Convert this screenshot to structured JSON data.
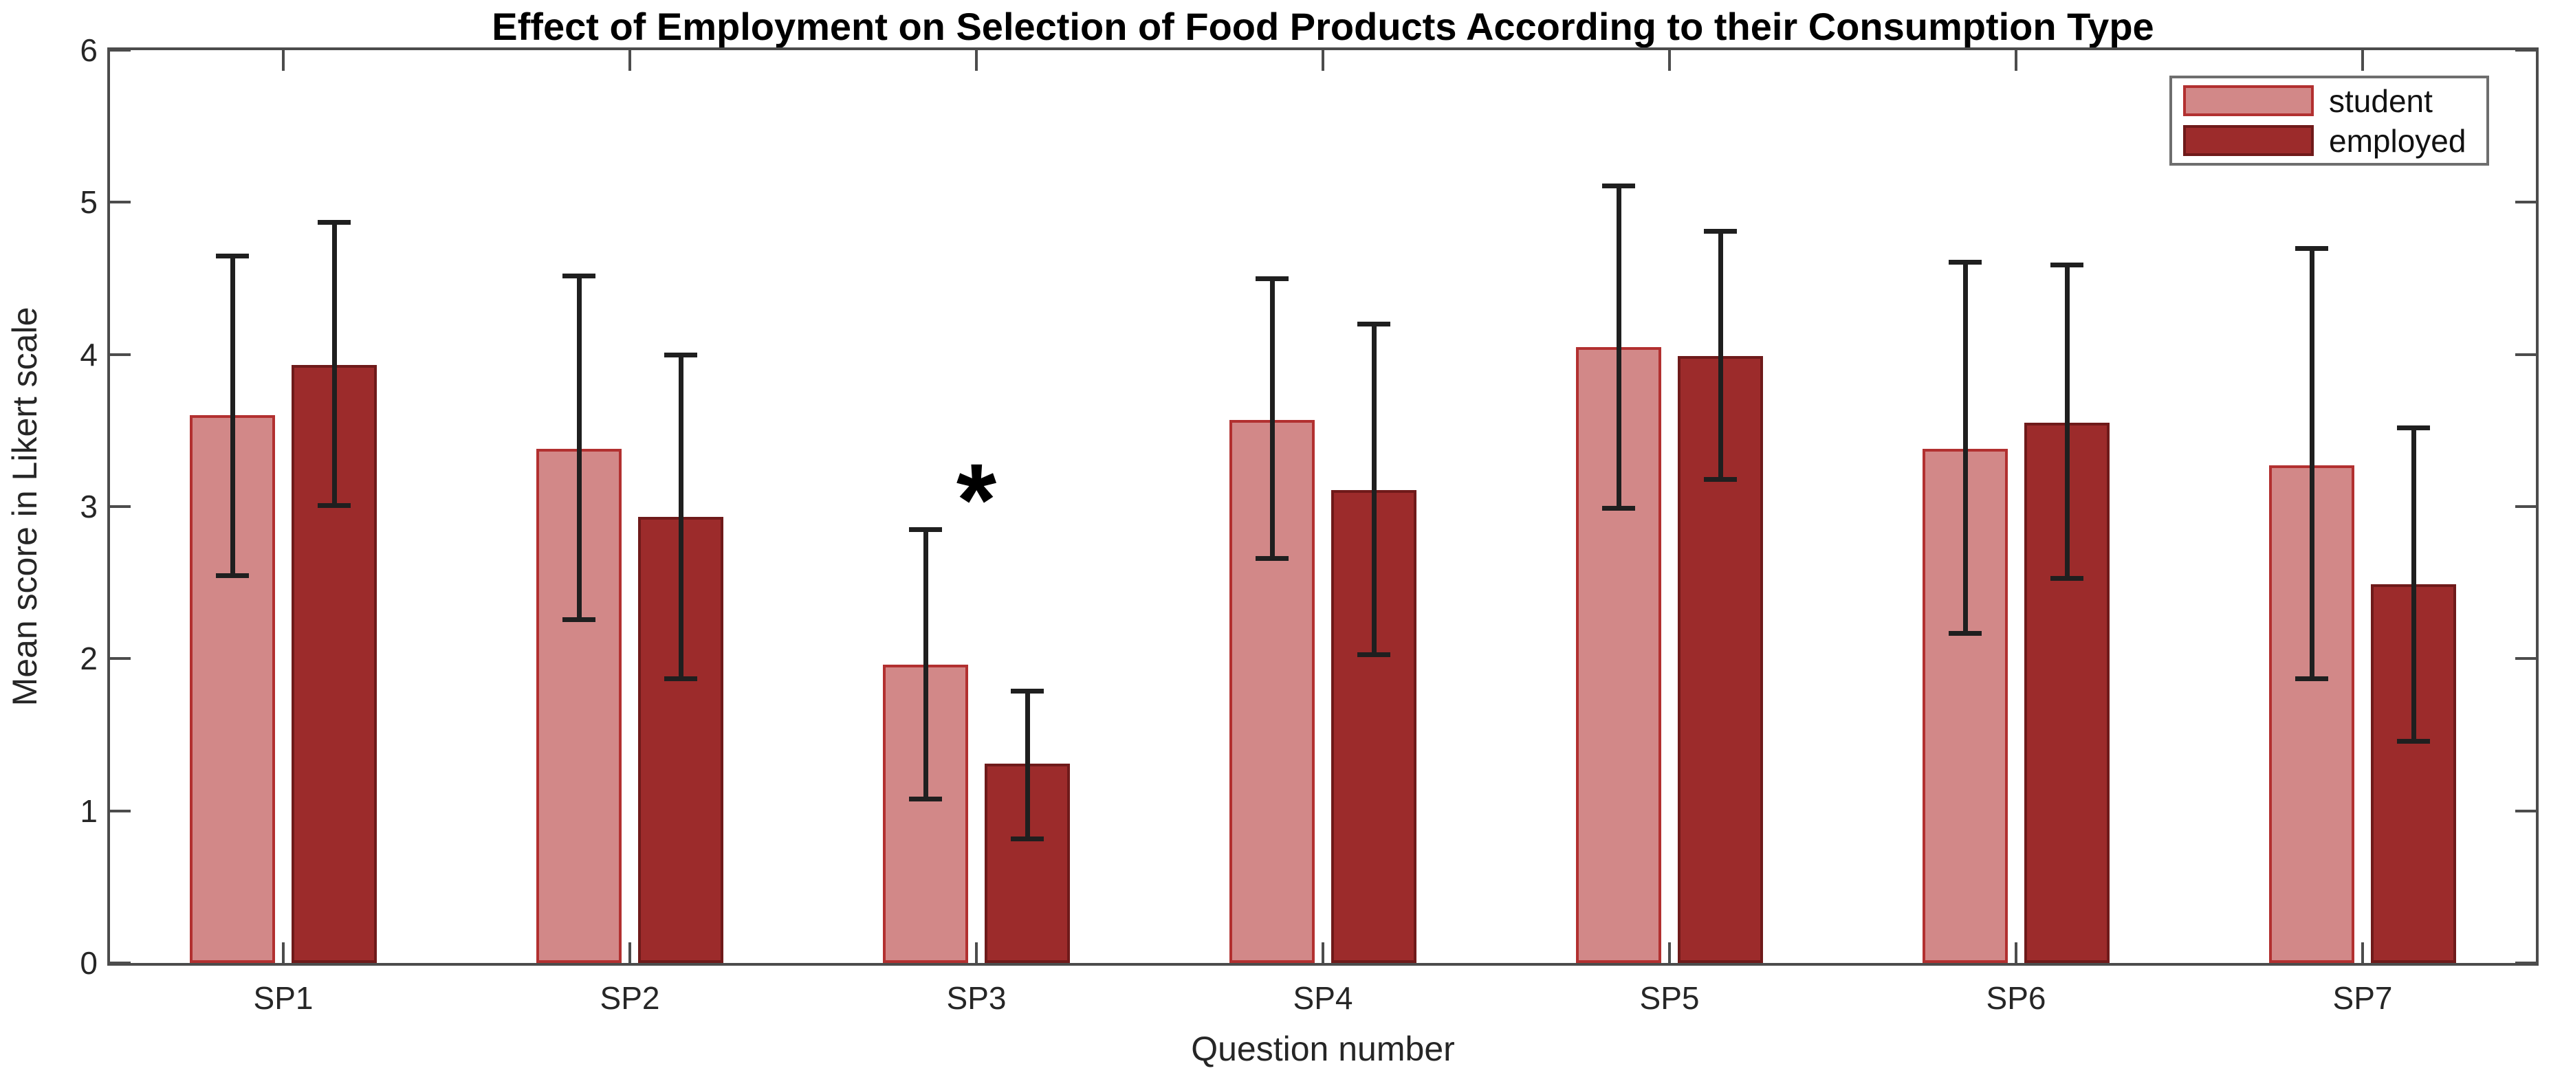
{
  "chart_data": {
    "type": "bar",
    "title": "Effect of Employment on Selection of Food Products According to their Consumption Type",
    "xlabel": "Question number",
    "ylabel": "Mean score in Likert scale",
    "categories": [
      "SP1",
      "SP2",
      "SP3",
      "SP4",
      "SP5",
      "SP6",
      "SP7"
    ],
    "ylim": [
      0,
      6
    ],
    "yticks": [
      0,
      1,
      2,
      3,
      4,
      5,
      6
    ],
    "grid": false,
    "legend_position": "top-right",
    "error_bars": true,
    "series": [
      {
        "name": "student",
        "fill": "#d28888",
        "edge": "#b23030",
        "values": [
          3.6,
          3.38,
          1.96,
          3.57,
          4.05,
          3.38,
          3.27
        ],
        "err_low": [
          2.55,
          2.26,
          1.08,
          2.66,
          2.99,
          2.17,
          1.87
        ],
        "err_high": [
          4.65,
          4.52,
          2.85,
          4.5,
          5.11,
          4.61,
          4.7
        ]
      },
      {
        "name": "employed",
        "fill": "#9c2b2b",
        "edge": "#6f1a1a",
        "values": [
          3.93,
          2.93,
          1.31,
          3.11,
          3.99,
          3.55,
          2.49
        ],
        "err_low": [
          3.01,
          1.87,
          0.82,
          2.03,
          3.18,
          2.53,
          1.46
        ],
        "err_high": [
          4.87,
          4.0,
          1.79,
          4.2,
          4.81,
          4.59,
          3.52
        ]
      }
    ],
    "annotations": [
      {
        "text": "*",
        "category": "SP3",
        "y": 3.1,
        "meaning": "significant difference"
      }
    ],
    "colors": {
      "axis": "#4c4c4c",
      "error_bar": "#1f1f1f",
      "legend_border": "#6e6e6e",
      "background": "#ffffff"
    }
  }
}
